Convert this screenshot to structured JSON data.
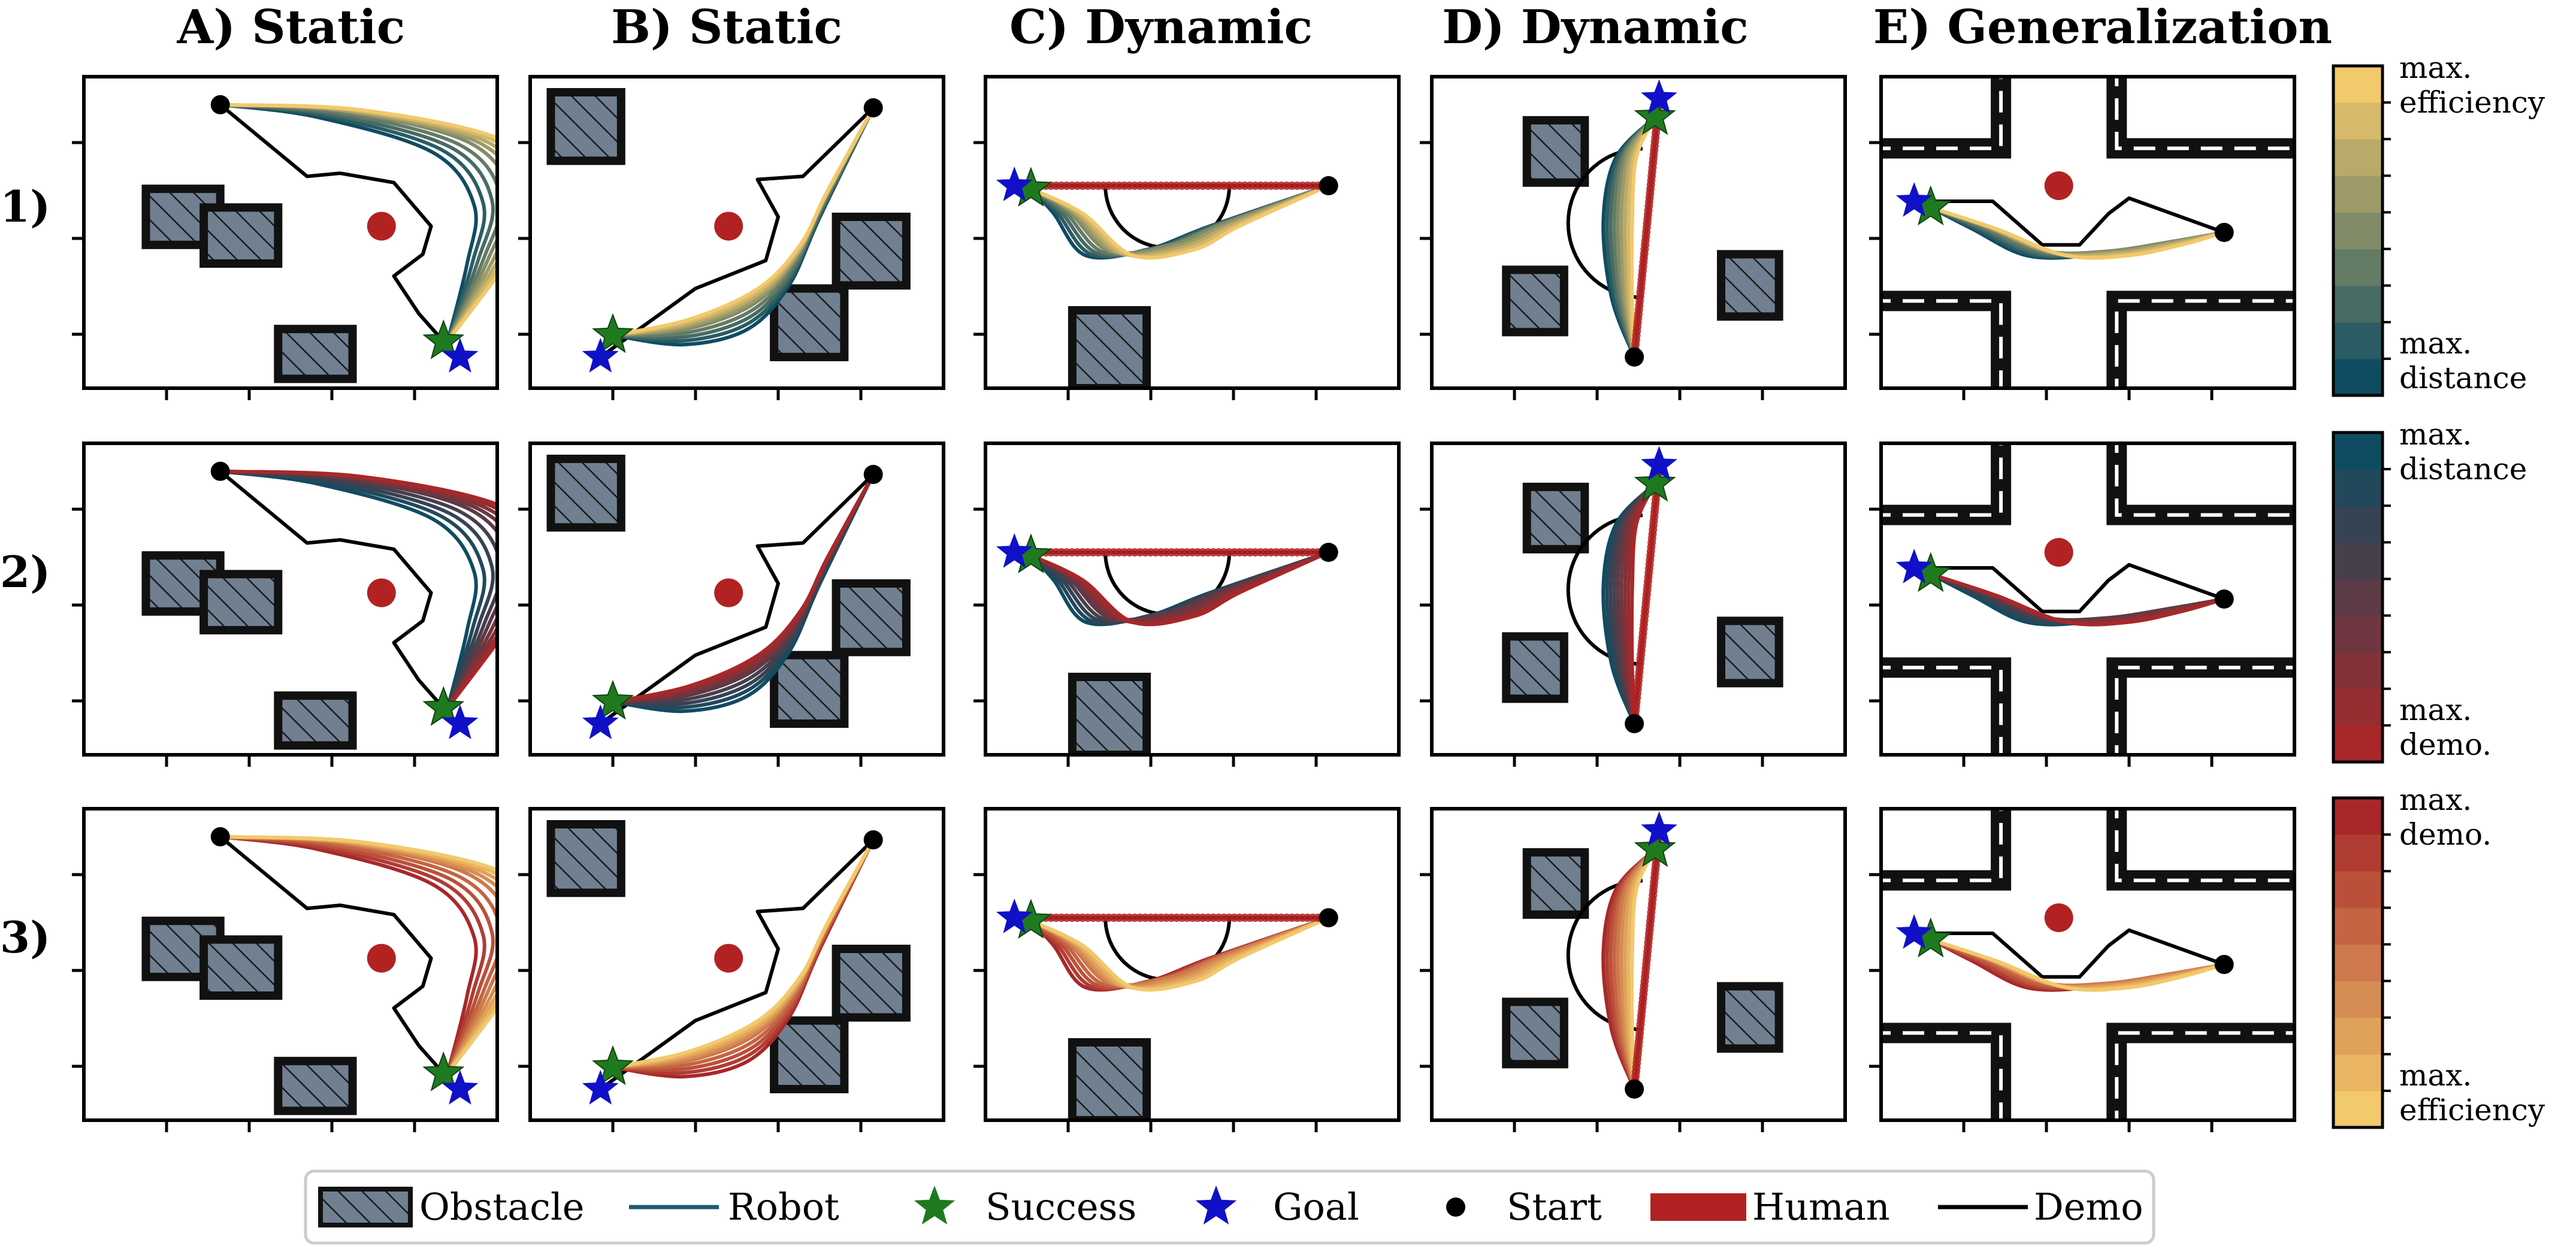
{
  "column_titles": [
    "A) Static",
    "B) Static",
    "C) Dynamic",
    "D) Dynamic",
    "E) Generalization"
  ],
  "row_labels": [
    "1)",
    "2)",
    "3)"
  ],
  "colors": {
    "robot": "#1b5a73",
    "success": "#1f7a1f",
    "goal": "#1010c8",
    "start": "#000000",
    "human": "#b22222",
    "demo": "#000000",
    "obstacle": "#708090",
    "efficiency_end": "#f2c96b",
    "distance_end": "#0f4c62",
    "demo_end": "#a8282a"
  },
  "colorbars": [
    {
      "top": "max.\nefficiency",
      "bottom": "max.\ndistance",
      "from": "#0f4c62",
      "to": "#f2c96b",
      "levels": 9
    },
    {
      "top": "max.\ndistance",
      "bottom": "max.\ndemo.",
      "from": "#a8282a",
      "to": "#0f4c62",
      "levels": 9
    },
    {
      "top": "max.\ndemo.",
      "bottom": "max.\nefficiency",
      "from": "#f2c96b",
      "to": "#a8282a",
      "levels": 9
    }
  ],
  "legend": [
    {
      "key": "obstacle",
      "label": "Obstacle"
    },
    {
      "key": "robot",
      "label": "Robot"
    },
    {
      "key": "success",
      "label": "Success"
    },
    {
      "key": "goal",
      "label": "Goal"
    },
    {
      "key": "start",
      "label": "Start"
    },
    {
      "key": "human",
      "label": "Human"
    },
    {
      "key": "demo",
      "label": "Demo"
    }
  ],
  "chart_data": {
    "type": "line",
    "grid": false,
    "rows": 3,
    "columns": 5,
    "row_palettes": [
      {
        "from": "#0f4c62",
        "to": "#f2c96b"
      },
      {
        "from": "#0f4c62",
        "to": "#a8282a"
      },
      {
        "from": "#a8282a",
        "to": "#f2c96b"
      }
    ],
    "panels": [
      {
        "id": "A",
        "xlim": [
          0,
          10
        ],
        "ylim": [
          0,
          10
        ],
        "obstacles": [
          [
            1.5,
            4.6,
            1.8,
            1.8
          ],
          [
            2.9,
            4.0,
            1.8,
            1.8
          ],
          [
            4.7,
            0.3,
            1.8,
            1.6
          ]
        ],
        "human": [
          7.2,
          5.2
        ],
        "start": [
          3.3,
          9.1
        ],
        "goal": [
          9.1,
          1.0
        ],
        "success": [
          8.7,
          1.5
        ],
        "demo": [
          [
            3.3,
            9.1
          ],
          [
            5.4,
            6.8
          ],
          [
            6.2,
            6.9
          ],
          [
            7.5,
            6.6
          ],
          [
            8.4,
            5.2
          ],
          [
            8.2,
            4.3
          ],
          [
            7.5,
            3.6
          ],
          [
            8.1,
            2.4
          ],
          [
            8.7,
            1.5
          ]
        ],
        "robot": [
          [
            3.3,
            9.1
          ],
          [
            6.2,
            8.9
          ],
          [
            9.3,
            7.9
          ],
          [
            10.3,
            6.2
          ],
          [
            9.8,
            4.2
          ],
          [
            8.8,
            1.5
          ]
        ],
        "robot_spread": [
          1.8,
          0.4
        ],
        "human_trail": false
      },
      {
        "id": "B",
        "xlim": [
          0,
          10
        ],
        "ylim": [
          0,
          10
        ],
        "obstacles": [
          [
            0.5,
            7.3,
            1.7,
            2.2
          ],
          [
            7.4,
            3.3,
            1.7,
            2.2
          ],
          [
            5.9,
            1.0,
            1.7,
            2.2
          ]
        ],
        "human": [
          4.8,
          5.2
        ],
        "start": [
          8.3,
          9.0
        ],
        "goal": [
          1.7,
          1.0
        ],
        "success": [
          2.0,
          1.7
        ],
        "demo": [
          [
            1.7,
            1.0
          ],
          [
            4.0,
            3.2
          ],
          [
            5.7,
            4.1
          ],
          [
            6.0,
            5.5
          ],
          [
            5.5,
            6.7
          ],
          [
            6.6,
            6.8
          ],
          [
            8.3,
            9.0
          ]
        ],
        "robot": [
          [
            2.0,
            1.7
          ],
          [
            3.8,
            1.9
          ],
          [
            5.4,
            2.7
          ],
          [
            6.4,
            4.1
          ],
          [
            7.1,
            6.0
          ],
          [
            8.3,
            9.0
          ]
        ],
        "robot_spread": [
          0.3,
          1.4
        ],
        "human_trail": false
      },
      {
        "id": "C",
        "xlim": [
          0,
          10
        ],
        "ylim": [
          0,
          10
        ],
        "obstacles": [
          [
            2.1,
            0.0,
            1.8,
            2.5
          ]
        ],
        "human": [
          4.8,
          6.5
        ],
        "start": [
          8.3,
          6.5
        ],
        "goal": [
          0.7,
          6.5
        ],
        "success": [
          1.1,
          6.4
        ],
        "demo": [
          [
            0.7,
            6.5
          ],
          [
            8.3,
            6.5
          ]
        ],
        "demo_arc": {
          "cx": 4.4,
          "cy": 6.5,
          "r": 1.5,
          "from": 0,
          "to": -180
        },
        "robot": [
          [
            1.1,
            6.4
          ],
          [
            2.0,
            5.7
          ],
          [
            3.0,
            4.4
          ],
          [
            4.5,
            4.6
          ],
          [
            5.8,
            5.3
          ],
          [
            8.3,
            6.5
          ]
        ],
        "robot_spread": [
          1.2,
          0.0
        ],
        "human_trail": true
      },
      {
        "id": "D",
        "xlim": [
          0,
          10
        ],
        "ylim": [
          0,
          10
        ],
        "obstacles": [
          [
            2.3,
            6.6,
            1.4,
            2.0
          ],
          [
            1.8,
            1.8,
            1.4,
            2.0
          ],
          [
            7.0,
            2.3,
            1.4,
            2.0
          ]
        ],
        "human": [
          5.3,
          6.0
        ],
        "start": [
          4.9,
          1.0
        ],
        "goal": [
          5.5,
          9.3
        ],
        "success": [
          5.4,
          8.7
        ],
        "demo": [
          [
            4.9,
            1.0
          ],
          [
            5.5,
            9.3
          ]
        ],
        "demo_arc": {
          "cx": 5.1,
          "cy": 5.3,
          "r": 1.8,
          "from": 90,
          "to": 270
        },
        "robot": [
          [
            4.9,
            1.0
          ],
          [
            4.6,
            3.0
          ],
          [
            4.5,
            5.5
          ],
          [
            4.7,
            7.5
          ],
          [
            5.4,
            8.7
          ]
        ],
        "robot_spread": [
          0.7,
          0.0
        ],
        "human_trail": true
      },
      {
        "id": "E",
        "xlim": [
          0,
          10
        ],
        "ylim": [
          0,
          10
        ],
        "obstacles": [],
        "corridor": true,
        "human": [
          4.3,
          6.5
        ],
        "start": [
          8.3,
          5.0
        ],
        "goal": [
          0.8,
          6.0
        ],
        "success": [
          1.2,
          5.8
        ],
        "demo": [
          [
            0.8,
            6.0
          ],
          [
            2.7,
            6.0
          ],
          [
            3.3,
            5.3
          ],
          [
            3.9,
            4.6
          ],
          [
            4.8,
            4.6
          ],
          [
            5.5,
            5.6
          ],
          [
            6.0,
            6.1
          ],
          [
            8.3,
            5.0
          ]
        ],
        "robot": [
          [
            1.2,
            5.8
          ],
          [
            2.5,
            5.2
          ],
          [
            4.0,
            4.4
          ],
          [
            5.5,
            4.4
          ],
          [
            7.0,
            4.7
          ],
          [
            8.3,
            5.0
          ]
        ],
        "robot_spread": [
          1.0,
          0.0
        ],
        "human_trail": false
      }
    ]
  }
}
